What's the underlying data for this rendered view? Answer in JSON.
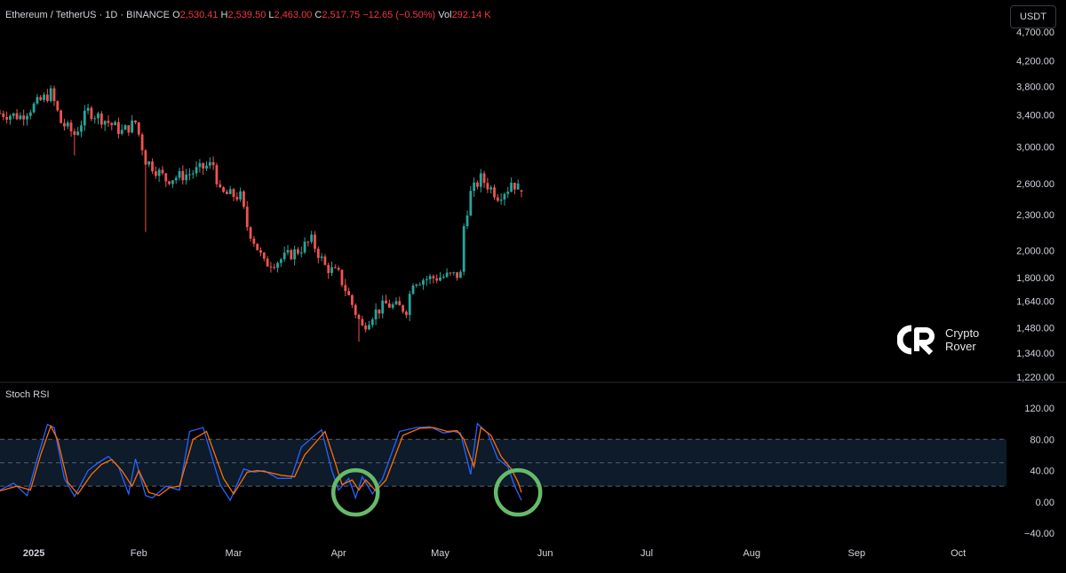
{
  "header": {
    "symbol": "Ethereum / TetherUS · 1D · BINANCE",
    "o_label": "O",
    "o_value": "2,530.41",
    "h_label": "H",
    "h_value": "2,539.50",
    "l_label": "L",
    "l_value": "2,463.00",
    "c_label": "C",
    "c_value": "2,517.75",
    "change": "−12.65 (−0.50%)",
    "vol_label": "Vol",
    "vol_value": "292.14 K"
  },
  "currency_button": "USDT",
  "indicator": {
    "title": "Stoch RSI"
  },
  "watermark": {
    "line1": "Crypto",
    "line2": "Rover"
  },
  "colors": {
    "up": "#26a69a",
    "down": "#ef5350",
    "k_line": "#2962ff",
    "d_line": "#ff6d00",
    "band_fill": "#0d1b2a",
    "highlight_circle": "#66bb6a"
  },
  "chart_data": [
    {
      "type": "candlestick",
      "title": "Ethereum / TetherUS · 1D · BINANCE",
      "scale": "log",
      "ylim": [
        1220,
        4700
      ],
      "y_ticks": [
        "4,700.00",
        "4,200.00",
        "3,800.00",
        "3,400.00",
        "3,000.00",
        "2,600.00",
        "2,300.00",
        "2,000.00",
        "1,800.00",
        "1,640.00",
        "1,480.00",
        "1,340.00",
        "1,220.00"
      ],
      "x_ticks": [
        "2025",
        "Feb",
        "Mar",
        "Apr",
        "May",
        "Jun",
        "Jul",
        "Aug",
        "Sep",
        "Oct"
      ],
      "x_range": [
        "2024-12-22",
        "2025-10-10"
      ],
      "grid": false,
      "close_anchors": [
        [
          "2024-12-22",
          3420
        ],
        [
          "2024-12-28",
          3380
        ],
        [
          "2025-01-06",
          3700
        ],
        [
          "2025-01-09",
          3300
        ],
        [
          "2025-01-13",
          3150
        ],
        [
          "2025-01-17",
          3450
        ],
        [
          "2025-01-22",
          3330
        ],
        [
          "2025-01-27",
          3180
        ],
        [
          "2025-01-31",
          3300
        ],
        [
          "2025-02-03",
          2850
        ],
        [
          "2025-02-09",
          2640
        ],
        [
          "2025-02-16",
          2700
        ],
        [
          "2025-02-21",
          2780
        ],
        [
          "2025-02-23",
          2800
        ],
        [
          "2025-02-25",
          2500
        ],
        [
          "2025-03-03",
          2470
        ],
        [
          "2025-03-05",
          2200
        ],
        [
          "2025-03-10",
          1900
        ],
        [
          "2025-03-14",
          1920
        ],
        [
          "2025-03-20",
          2000
        ],
        [
          "2025-03-24",
          2080
        ],
        [
          "2025-03-28",
          1880
        ],
        [
          "2025-04-01",
          1820
        ],
        [
          "2025-04-06",
          1570
        ],
        [
          "2025-04-08",
          1480
        ],
        [
          "2025-04-11",
          1560
        ],
        [
          "2025-04-15",
          1620
        ],
        [
          "2025-04-21",
          1590
        ],
        [
          "2025-04-23",
          1780
        ],
        [
          "2025-04-30",
          1800
        ],
        [
          "2025-05-07",
          1820
        ],
        [
          "2025-05-08",
          2200
        ],
        [
          "2025-05-10",
          2500
        ],
        [
          "2025-05-13",
          2650
        ],
        [
          "2025-05-18",
          2480
        ],
        [
          "2025-05-21",
          2550
        ],
        [
          "2025-05-22",
          2620
        ],
        [
          "2025-05-25",
          2517.75
        ]
      ]
    },
    {
      "type": "line",
      "title": "Stoch RSI",
      "ylim": [
        -40,
        120
      ],
      "y_ticks": [
        "120.00",
        "80.00",
        "40.00",
        "0.00",
        "−40.00"
      ],
      "band": [
        20,
        80
      ],
      "grid": false,
      "series": [
        {
          "color": "#2962ff",
          "points": [
            [
              "2024-12-22",
              15
            ],
            [
              "2024-12-26",
              24
            ],
            [
              "2024-12-30",
              8
            ],
            [
              "2025-01-02",
              55
            ],
            [
              "2025-01-05",
              99
            ],
            [
              "2025-01-07",
              95
            ],
            [
              "2025-01-10",
              30
            ],
            [
              "2025-01-13",
              7
            ],
            [
              "2025-01-17",
              40
            ],
            [
              "2025-01-20",
              50
            ],
            [
              "2025-01-23",
              58
            ],
            [
              "2025-01-26",
              45
            ],
            [
              "2025-01-29",
              10
            ],
            [
              "2025-01-31",
              55
            ],
            [
              "2025-02-03",
              8
            ],
            [
              "2025-02-05",
              5
            ],
            [
              "2025-02-09",
              20
            ],
            [
              "2025-02-13",
              15
            ],
            [
              "2025-02-16",
              90
            ],
            [
              "2025-02-20",
              95
            ],
            [
              "2025-02-25",
              22
            ],
            [
              "2025-02-28",
              2
            ],
            [
              "2025-03-04",
              42
            ],
            [
              "2025-03-07",
              38
            ],
            [
              "2025-03-10",
              40
            ],
            [
              "2025-03-14",
              30
            ],
            [
              "2025-03-18",
              30
            ],
            [
              "2025-03-21",
              70
            ],
            [
              "2025-03-25",
              85
            ],
            [
              "2025-03-27",
              92
            ],
            [
              "2025-03-30",
              40
            ],
            [
              "2025-04-01",
              15
            ],
            [
              "2025-04-04",
              30
            ],
            [
              "2025-04-06",
              5
            ],
            [
              "2025-04-08",
              32
            ],
            [
              "2025-04-11",
              10
            ],
            [
              "2025-04-14",
              30
            ],
            [
              "2025-04-19",
              90
            ],
            [
              "2025-04-24",
              95
            ],
            [
              "2025-04-28",
              96
            ],
            [
              "2025-05-02",
              88
            ],
            [
              "2025-05-05",
              90
            ],
            [
              "2025-05-07",
              88
            ],
            [
              "2025-05-10",
              35
            ],
            [
              "2025-05-12",
              100
            ],
            [
              "2025-05-15",
              88
            ],
            [
              "2025-05-18",
              55
            ],
            [
              "2025-05-21",
              45
            ],
            [
              "2025-05-23",
              20
            ],
            [
              "2025-05-25",
              2
            ]
          ]
        },
        {
          "color": "#ff6d00",
          "points": [
            [
              "2024-12-22",
              14
            ],
            [
              "2024-12-27",
              20
            ],
            [
              "2024-12-31",
              15
            ],
            [
              "2025-01-03",
              60
            ],
            [
              "2025-01-06",
              97
            ],
            [
              "2025-01-08",
              80
            ],
            [
              "2025-01-11",
              25
            ],
            [
              "2025-01-14",
              10
            ],
            [
              "2025-01-18",
              35
            ],
            [
              "2025-01-21",
              48
            ],
            [
              "2025-01-24",
              54
            ],
            [
              "2025-01-27",
              40
            ],
            [
              "2025-01-30",
              20
            ],
            [
              "2025-02-01",
              40
            ],
            [
              "2025-02-04",
              12
            ],
            [
              "2025-02-07",
              8
            ],
            [
              "2025-02-10",
              18
            ],
            [
              "2025-02-13",
              20
            ],
            [
              "2025-02-17",
              80
            ],
            [
              "2025-02-21",
              90
            ],
            [
              "2025-02-26",
              30
            ],
            [
              "2025-03-01",
              10
            ],
            [
              "2025-03-05",
              38
            ],
            [
              "2025-03-08",
              40
            ],
            [
              "2025-03-11",
              38
            ],
            [
              "2025-03-15",
              34
            ],
            [
              "2025-03-19",
              32
            ],
            [
              "2025-03-22",
              60
            ],
            [
              "2025-03-26",
              80
            ],
            [
              "2025-03-28",
              90
            ],
            [
              "2025-03-31",
              50
            ],
            [
              "2025-04-02",
              22
            ],
            [
              "2025-04-05",
              28
            ],
            [
              "2025-04-07",
              15
            ],
            [
              "2025-04-09",
              28
            ],
            [
              "2025-04-12",
              14
            ],
            [
              "2025-04-15",
              28
            ],
            [
              "2025-04-20",
              85
            ],
            [
              "2025-04-25",
              94
            ],
            [
              "2025-04-29",
              95
            ],
            [
              "2025-05-03",
              90
            ],
            [
              "2025-05-06",
              91
            ],
            [
              "2025-05-08",
              80
            ],
            [
              "2025-05-11",
              45
            ],
            [
              "2025-05-13",
              95
            ],
            [
              "2025-05-16",
              85
            ],
            [
              "2025-05-19",
              58
            ],
            [
              "2025-05-22",
              42
            ],
            [
              "2025-05-24",
              25
            ],
            [
              "2025-05-25",
              12
            ]
          ]
        }
      ],
      "highlight_circles": [
        [
          "2025-04-06",
          12
        ],
        [
          "2025-05-24",
          12
        ]
      ]
    }
  ]
}
